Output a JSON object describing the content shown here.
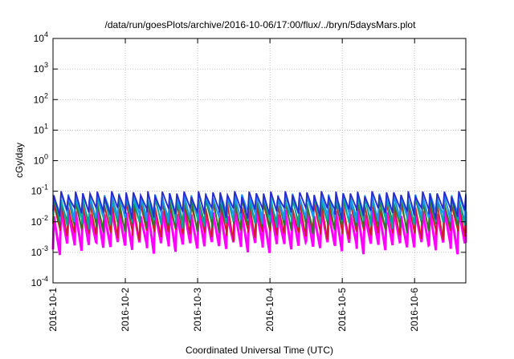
{
  "chart_data": {
    "type": "line",
    "title": "/data/run/goesPlots/archive/2016-10-06/17:00/flux/../bryn/5daysMars.plot",
    "xlabel": "Coordinated Universal Time (UTC)",
    "ylabel": "cGy/day",
    "yscale": "log",
    "ylim": [
      0.0001,
      10000
    ],
    "xlim": [
      "2016-10-01 00:00",
      "2016-10-06 17:00"
    ],
    "grid": true,
    "x_ticks": [
      "2016-10-1",
      "2016-10-2",
      "2016-10-3",
      "2016-10-4",
      "2016-10-5",
      "2016-10-6"
    ],
    "y_ticks": [
      {
        "base": "10",
        "exp": "-4",
        "value": 0.0001
      },
      {
        "base": "10",
        "exp": "-3",
        "value": 0.001
      },
      {
        "base": "10",
        "exp": "-2",
        "value": 0.01
      },
      {
        "base": "10",
        "exp": "-1",
        "value": 0.1
      },
      {
        "base": "10",
        "exp": "0",
        "value": 1
      },
      {
        "base": "10",
        "exp": "1",
        "value": 10
      },
      {
        "base": "10",
        "exp": "2",
        "value": 100
      },
      {
        "base": "10",
        "exp": "3",
        "value": 1000
      },
      {
        "base": "10",
        "exp": "4",
        "value": 10000
      }
    ],
    "sawtooth_period_hours": 2.4,
    "series": [
      {
        "color": "#ff00ff",
        "peak": 0.02,
        "trough": 0.0015
      },
      {
        "color": "#cc2020",
        "peak": 0.035,
        "trough": 0.004
      },
      {
        "color": "#2a7a2a",
        "peak": 0.05,
        "trough": 0.007
      },
      {
        "color": "#00aaaa",
        "peak": 0.06,
        "trough": 0.01
      },
      {
        "color": "#1e90ff",
        "peak": 0.07,
        "trough": 0.015
      },
      {
        "color": "#2a2acc",
        "peak": 0.08,
        "trough": 0.02
      }
    ]
  }
}
